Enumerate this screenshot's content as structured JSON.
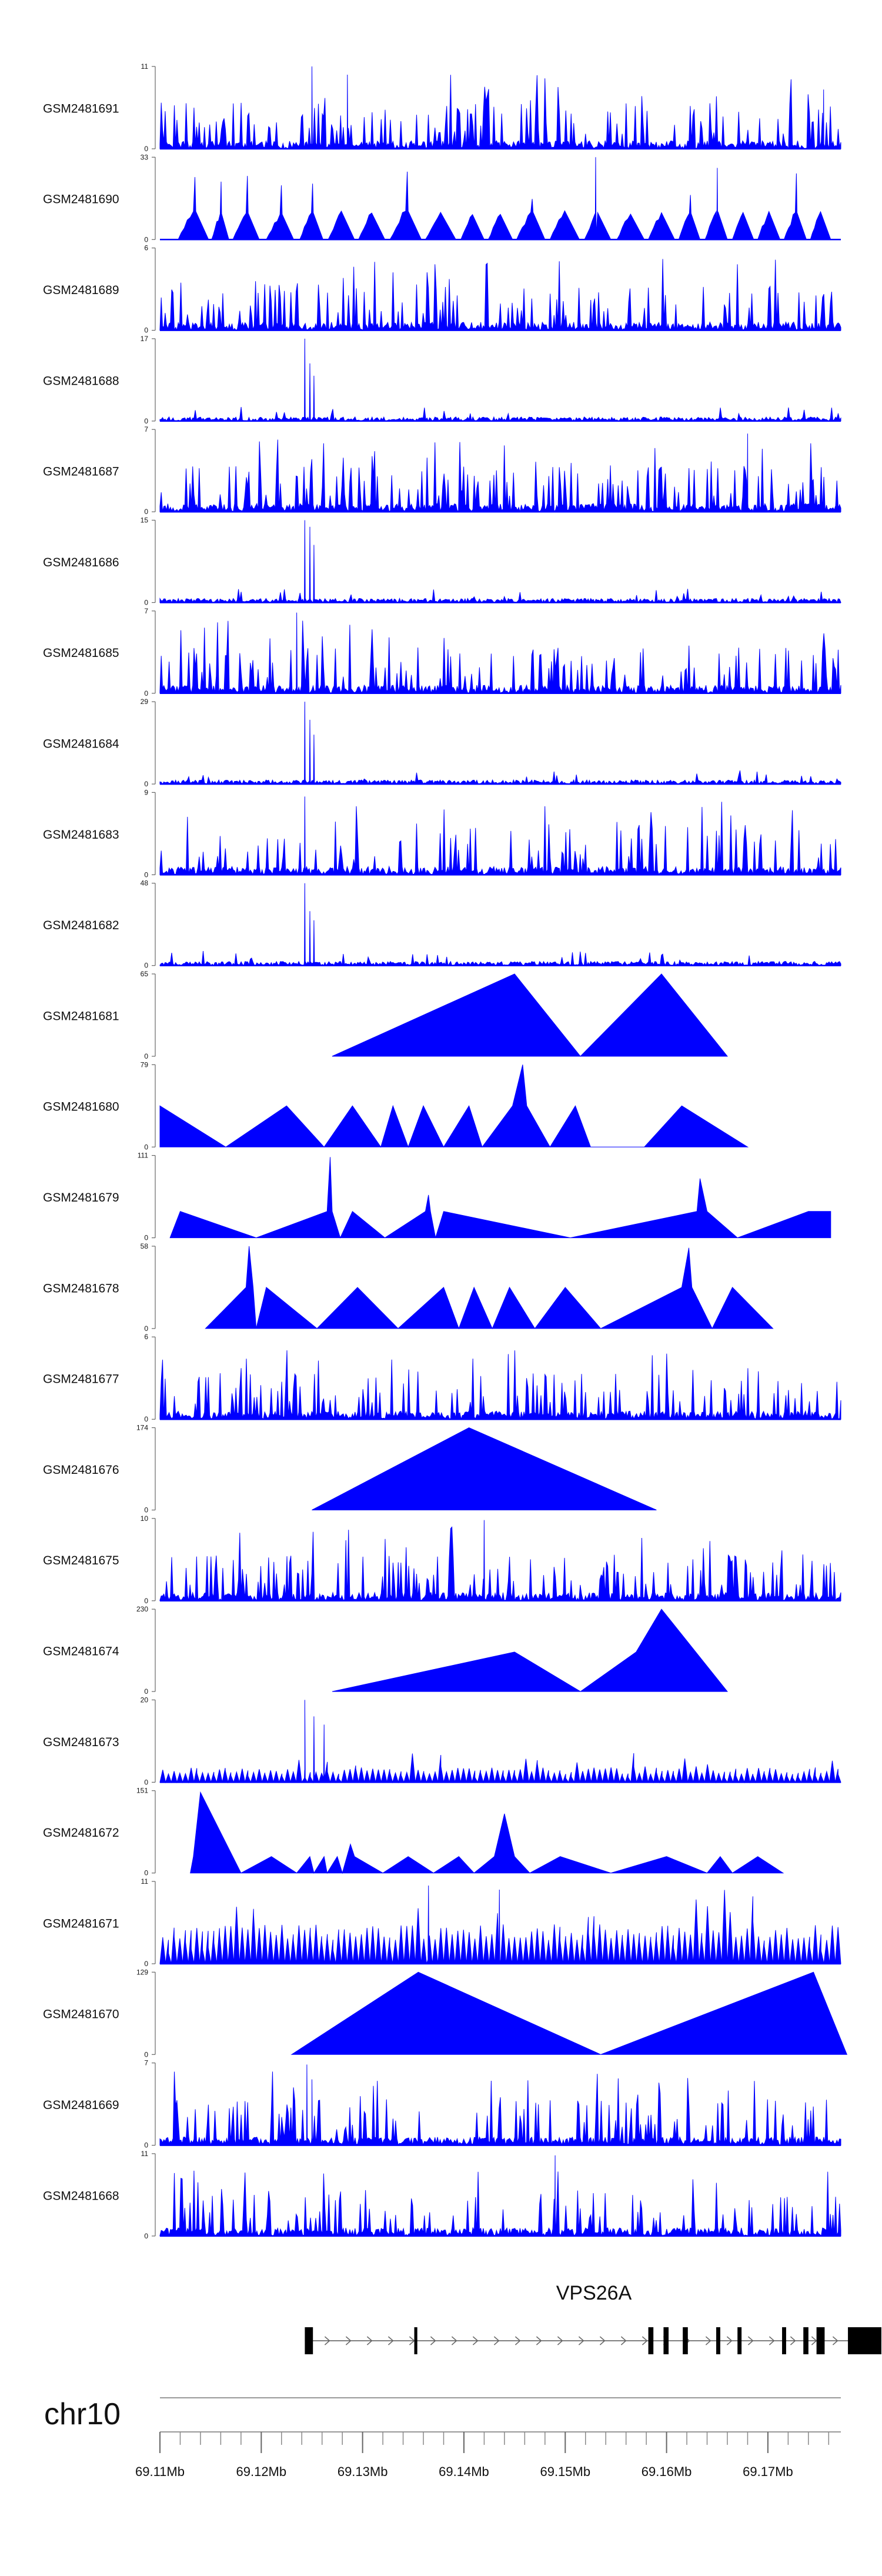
{
  "chart_data": {
    "type": "area",
    "title": "",
    "colors": {
      "track_fill": "#0000ff",
      "axis": "#000000",
      "gene": "#000000"
    },
    "tracks": [
      {
        "name": "GSM2481691",
        "ymax": 11,
        "style": "dense",
        "seed": 11,
        "spikes": [
          [
            69.125,
            1.0
          ],
          [
            69.1285,
            0.9
          ],
          [
            69.1755,
            0.72
          ]
        ]
      },
      {
        "name": "GSM2481690",
        "ymax": 33,
        "style": "blocks",
        "seed": 12,
        "spikes": [
          [
            69.153,
            1.0
          ],
          [
            69.165,
            0.75
          ]
        ]
      },
      {
        "name": "GSM2481689",
        "ymax": 6,
        "style": "dense",
        "seed": 13,
        "spikes": []
      },
      {
        "name": "GSM2481688",
        "ymax": 17,
        "style": "peak",
        "seed": 14,
        "spikes": [
          [
            69.1243,
            1.0
          ],
          [
            69.1248,
            0.7
          ],
          [
            69.1252,
            0.55
          ]
        ]
      },
      {
        "name": "GSM2481687",
        "ymax": 7,
        "style": "dense",
        "seed": 15,
        "spikes": [
          [
            69.168,
            0.95
          ]
        ]
      },
      {
        "name": "GSM2481686",
        "ymax": 15,
        "style": "peak",
        "seed": 16,
        "spikes": [
          [
            69.1243,
            1.0
          ],
          [
            69.1248,
            0.92
          ],
          [
            69.1252,
            0.7
          ]
        ]
      },
      {
        "name": "GSM2481685",
        "ymax": 7,
        "style": "dense",
        "seed": 17,
        "spikes": [
          [
            69.1235,
            0.98
          ]
        ]
      },
      {
        "name": "GSM2481684",
        "ymax": 29,
        "style": "peak",
        "seed": 18,
        "spikes": [
          [
            69.1243,
            1.0
          ],
          [
            69.1248,
            0.78
          ],
          [
            69.1252,
            0.6
          ]
        ]
      },
      {
        "name": "GSM2481683",
        "ymax": 9,
        "style": "dense",
        "seed": 19,
        "spikes": [
          [
            69.1243,
            0.95
          ]
        ]
      },
      {
        "name": "GSM2481682",
        "ymax": 48,
        "style": "peak",
        "seed": 20,
        "spikes": [
          [
            69.1243,
            1.0
          ],
          [
            69.1248,
            0.66
          ],
          [
            69.1252,
            0.55
          ]
        ]
      },
      {
        "name": "GSM2481681",
        "ymax": 65,
        "style": "points",
        "seed": 21,
        "points": [
          [
            69.127,
            0
          ],
          [
            69.145,
            1.0
          ],
          [
            69.1515,
            0
          ],
          [
            69.1595,
            1.0
          ],
          [
            69.166,
            0
          ]
        ]
      },
      {
        "name": "GSM2481680",
        "ymax": 79,
        "style": "points",
        "seed": 22,
        "points": [
          [
            69.11,
            0.5
          ],
          [
            69.1165,
            0
          ],
          [
            69.1225,
            0.5
          ],
          [
            69.1262,
            0
          ],
          [
            69.129,
            0.5
          ],
          [
            69.1318,
            0
          ],
          [
            69.133,
            0.5
          ],
          [
            69.1345,
            0
          ],
          [
            69.136,
            0.5
          ],
          [
            69.138,
            0
          ],
          [
            69.1405,
            0.5
          ],
          [
            69.1418,
            0
          ],
          [
            69.1448,
            0.5
          ],
          [
            69.1458,
            1.0
          ],
          [
            69.1462,
            0.5
          ],
          [
            69.1485,
            0
          ],
          [
            69.151,
            0.5
          ],
          [
            69.1525,
            0
          ],
          [
            69.1578,
            0
          ],
          [
            69.1615,
            0.5
          ],
          [
            69.168,
            0
          ]
        ]
      },
      {
        "name": "GSM2481679",
        "ymax": 111,
        "style": "points",
        "seed": 23,
        "points": [
          [
            69.111,
            0
          ],
          [
            69.112,
            0.32
          ],
          [
            69.1195,
            0
          ],
          [
            69.1265,
            0.32
          ],
          [
            69.1268,
            0.98
          ],
          [
            69.127,
            0.32
          ],
          [
            69.1278,
            0
          ],
          [
            69.129,
            0.32
          ],
          [
            69.1322,
            0
          ],
          [
            69.1362,
            0.32
          ],
          [
            69.1365,
            0.52
          ],
          [
            69.1367,
            0.32
          ],
          [
            69.1372,
            0
          ],
          [
            69.138,
            0.32
          ],
          [
            69.1505,
            0
          ],
          [
            69.163,
            0.32
          ],
          [
            69.1633,
            0.72
          ],
          [
            69.164,
            0.32
          ],
          [
            69.167,
            0
          ],
          [
            69.174,
            0.32
          ],
          [
            69.1762,
            0.32
          ],
          [
            69.1762,
            0
          ]
        ]
      },
      {
        "name": "GSM2481678",
        "ymax": 58,
        "style": "points",
        "seed": 24,
        "points": [
          [
            69.1145,
            0
          ],
          [
            69.1185,
            0.5
          ],
          [
            69.1188,
            1.0
          ],
          [
            69.1192,
            0.5
          ],
          [
            69.1195,
            0
          ],
          [
            69.1205,
            0.5
          ],
          [
            69.1255,
            0
          ],
          [
            69.1295,
            0.5
          ],
          [
            69.1335,
            0
          ],
          [
            69.138,
            0.5
          ],
          [
            69.1395,
            0
          ],
          [
            69.141,
            0.5
          ],
          [
            69.1428,
            0
          ],
          [
            69.1445,
            0.5
          ],
          [
            69.147,
            0
          ],
          [
            69.15,
            0.5
          ],
          [
            69.1535,
            0
          ],
          [
            69.1615,
            0.5
          ],
          [
            69.1622,
            0.98
          ],
          [
            69.1625,
            0.5
          ],
          [
            69.1645,
            0
          ],
          [
            69.1665,
            0.5
          ],
          [
            69.1705,
            0
          ]
        ]
      },
      {
        "name": "GSM2481677",
        "ymax": 6,
        "style": "dense",
        "seed": 25,
        "spikes": []
      },
      {
        "name": "GSM2481676",
        "ymax": 174,
        "style": "points",
        "seed": 26,
        "points": [
          [
            69.125,
            0
          ],
          [
            69.1405,
            1.0
          ],
          [
            69.159,
            0
          ]
        ]
      },
      {
        "name": "GSM2481675",
        "ymax": 10,
        "style": "dense",
        "seed": 27,
        "spikes": [
          [
            69.142,
            0.98
          ]
        ]
      },
      {
        "name": "GSM2481674",
        "ymax": 230,
        "style": "points",
        "seed": 28,
        "points": [
          [
            69.127,
            0
          ],
          [
            69.145,
            0.48
          ],
          [
            69.1515,
            0
          ],
          [
            69.157,
            0.48
          ],
          [
            69.1595,
            1.0
          ],
          [
            69.166,
            0
          ]
        ]
      },
      {
        "name": "GSM2481673",
        "ymax": 20,
        "style": "sawpeak",
        "seed": 29,
        "spikes": [
          [
            69.1243,
            1.0
          ],
          [
            69.1252,
            0.8
          ],
          [
            69.1262,
            0.7
          ]
        ]
      },
      {
        "name": "GSM2481672",
        "ymax": 151,
        "style": "points",
        "seed": 30,
        "points": [
          [
            69.113,
            0
          ],
          [
            69.1133,
            0.2
          ],
          [
            69.114,
            0.98
          ],
          [
            69.118,
            0
          ],
          [
            69.121,
            0.2
          ],
          [
            69.1235,
            0
          ],
          [
            69.1248,
            0.2
          ],
          [
            69.1252,
            0
          ],
          [
            69.1262,
            0.2
          ],
          [
            69.1265,
            0
          ],
          [
            69.1275,
            0.2
          ],
          [
            69.128,
            0
          ],
          [
            69.1288,
            0.35
          ],
          [
            69.1292,
            0.2
          ],
          [
            69.132,
            0
          ],
          [
            69.1345,
            0.2
          ],
          [
            69.137,
            0
          ],
          [
            69.1395,
            0.2
          ],
          [
            69.141,
            0
          ],
          [
            69.143,
            0.2
          ],
          [
            69.144,
            0.72
          ],
          [
            69.145,
            0.2
          ],
          [
            69.1465,
            0
          ],
          [
            69.1495,
            0.2
          ],
          [
            69.1545,
            0
          ],
          [
            69.16,
            0.2
          ],
          [
            69.164,
            0
          ],
          [
            69.1653,
            0.2
          ],
          [
            69.1665,
            0
          ],
          [
            69.169,
            0.2
          ],
          [
            69.1715,
            0
          ]
        ]
      },
      {
        "name": "GSM2481671",
        "ymax": 11,
        "style": "saw",
        "seed": 31,
        "spikes": [
          [
            69.1365,
            0.95
          ],
          [
            69.1435,
            0.9
          ]
        ]
      },
      {
        "name": "GSM2481670",
        "ymax": 129,
        "style": "points",
        "seed": 32,
        "points": [
          [
            69.123,
            0
          ],
          [
            69.1355,
            1.0
          ],
          [
            69.1535,
            0
          ],
          [
            69.1745,
            1.0
          ],
          [
            69.1778,
            0
          ]
        ]
      },
      {
        "name": "GSM2481669",
        "ymax": 7,
        "style": "dense",
        "seed": 33,
        "spikes": [
          [
            69.1245,
            0.98
          ],
          [
            69.125,
            0.8
          ]
        ]
      },
      {
        "name": "GSM2481668",
        "ymax": 11,
        "style": "dense",
        "seed": 34,
        "spikes": [
          [
            69.149,
            0.98
          ]
        ]
      }
    ],
    "gene": {
      "name": "VPS26A",
      "strand": "+",
      "start": 69.1243,
      "end": 69.1812,
      "exons": [
        [
          69.1243,
          69.1251
        ],
        [
          69.1351,
          69.1354
        ],
        [
          69.1582,
          69.1587
        ],
        [
          69.1597,
          69.1602
        ],
        [
          69.1616,
          69.1621
        ],
        [
          69.1649,
          69.1653
        ],
        [
          69.167,
          69.1674
        ],
        [
          69.1714,
          69.1718
        ],
        [
          69.1735,
          69.174
        ],
        [
          69.1748,
          69.1756
        ],
        [
          69.1779,
          69.1812
        ]
      ]
    },
    "chromosome": "chr10",
    "xlim": [
      69.11,
      69.1772
    ],
    "xlabel": "",
    "ticks": [
      {
        "v": 69.11,
        "label": "69.11Mb"
      },
      {
        "v": 69.12,
        "label": "69.12Mb"
      },
      {
        "v": 69.13,
        "label": "69.13Mb"
      },
      {
        "v": 69.14,
        "label": "69.14Mb"
      },
      {
        "v": 69.15,
        "label": "69.15Mb"
      },
      {
        "v": 69.16,
        "label": "69.16Mb"
      },
      {
        "v": 69.17,
        "label": "69.17Mb"
      }
    ],
    "minor_tick_step": 0.002
  }
}
